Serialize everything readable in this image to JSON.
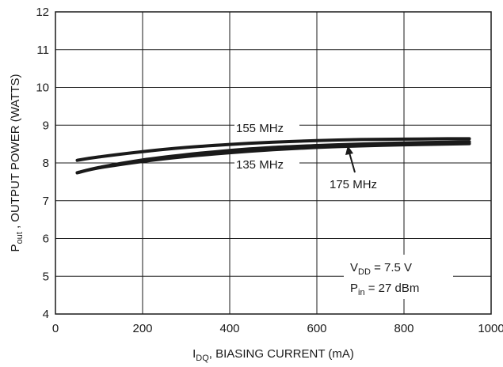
{
  "chart_data": {
    "type": "line",
    "xlim": [
      0,
      1000
    ],
    "ylim": [
      4,
      12
    ],
    "x_ticks": [
      "0",
      "200",
      "400",
      "600",
      "800",
      "1000"
    ],
    "y_ticks": [
      "4",
      "5",
      "6",
      "7",
      "8",
      "9",
      "10",
      "11",
      "12"
    ],
    "grid": true,
    "xlabel": {
      "main": "I",
      "sub": "DQ",
      "rest": ", BIASING CURRENT (mA)"
    },
    "ylabel": {
      "main": "P",
      "sub": "out",
      "rest": " , OUTPUT POWER (WATTS)"
    },
    "x": [
      50,
      100,
      200,
      300,
      400,
      500,
      600,
      700,
      800,
      900,
      950
    ],
    "series": [
      {
        "name": "155 MHz",
        "values": [
          8.07,
          8.16,
          8.3,
          8.41,
          8.49,
          8.55,
          8.59,
          8.62,
          8.63,
          8.64,
          8.64
        ]
      },
      {
        "name": "135 MHz",
        "values": [
          7.74,
          7.88,
          8.08,
          8.22,
          8.33,
          8.41,
          8.46,
          8.5,
          8.53,
          8.55,
          8.56
        ]
      },
      {
        "name": "175 MHz",
        "values": [
          7.74,
          7.87,
          8.04,
          8.17,
          8.27,
          8.35,
          8.41,
          8.45,
          8.48,
          8.5,
          8.51
        ]
      }
    ],
    "annotations": {
      "vdd": {
        "main": "V",
        "sub": "DD",
        "rest": " = 7.5 V"
      },
      "pin": {
        "main": "P",
        "sub": "in",
        "rest": " = 27 dBm"
      }
    }
  }
}
